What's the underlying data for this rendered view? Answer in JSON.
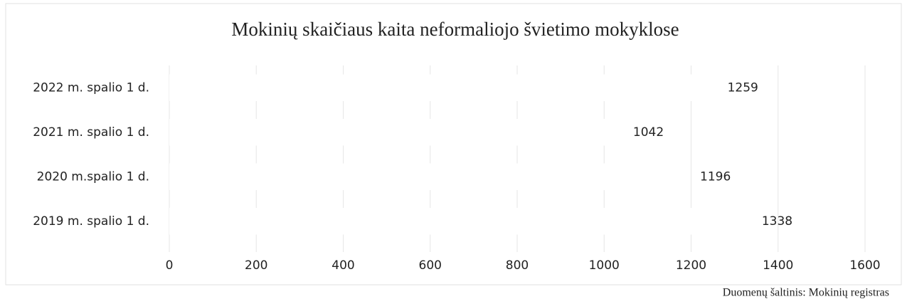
{
  "chart_data": {
    "type": "hbar",
    "title": "Mokinių skaičiaus kaita neformaliojo švietimo mokyklose",
    "categories": [
      "2022 m. spalio 1 d.",
      "2021 m. spalio 1 d.",
      "2020 m.spalio 1 d.",
      "2019 m. spalio 1 d."
    ],
    "values": [
      1259,
      1042,
      1196,
      1338
    ],
    "color": "#ffffff",
    "xlim": [
      0,
      1600
    ],
    "xticks": [
      0,
      200,
      400,
      600,
      800,
      1000,
      1200,
      1400,
      1600
    ],
    "grid": true,
    "source": "Duomenų šaltinis: Mokinių registras"
  }
}
